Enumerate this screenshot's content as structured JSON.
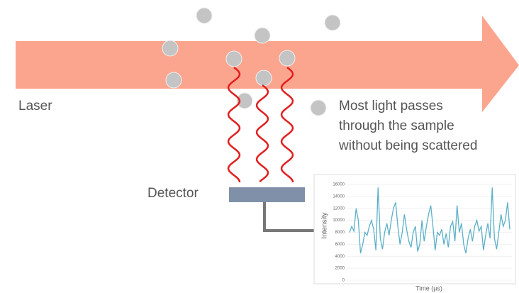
{
  "labels": {
    "laser": "Laser",
    "detector": "Detector",
    "note": [
      "Most light passes",
      "through the sample",
      "without being scattered"
    ]
  },
  "chart_data": {
    "type": "line",
    "xlabel": "Time (µs)",
    "ylabel": "Intensity",
    "color": "#5bb0c8",
    "ylim": [
      0,
      16000
    ],
    "yticks": [
      0,
      2000,
      4000,
      6000,
      8000,
      10000,
      12000,
      14000,
      16000
    ],
    "grid": true,
    "values": [
      8000,
      9000,
      8200,
      12000,
      10000,
      4500,
      6000,
      8000,
      7500,
      9000,
      10000,
      8500,
      5000,
      15500,
      7000,
      5200,
      8000,
      9500,
      7500,
      10000,
      12000,
      13000,
      9000,
      6000,
      8000,
      11000,
      8500,
      6500,
      5500,
      8000,
      9000,
      4800,
      6000,
      10000,
      6500,
      9000,
      11000,
      12500,
      9000,
      5000,
      8000,
      7500,
      8500,
      6000,
      7800,
      5500,
      9000,
      9800,
      6500,
      12500,
      8000,
      9500,
      6000,
      4500,
      7000,
      8500,
      6500,
      9000,
      10000,
      8200,
      9000,
      5000,
      7500,
      9500,
      7000,
      15500,
      7000,
      5200,
      8000,
      11000,
      9000,
      10000,
      13000,
      8500
    ]
  }
}
